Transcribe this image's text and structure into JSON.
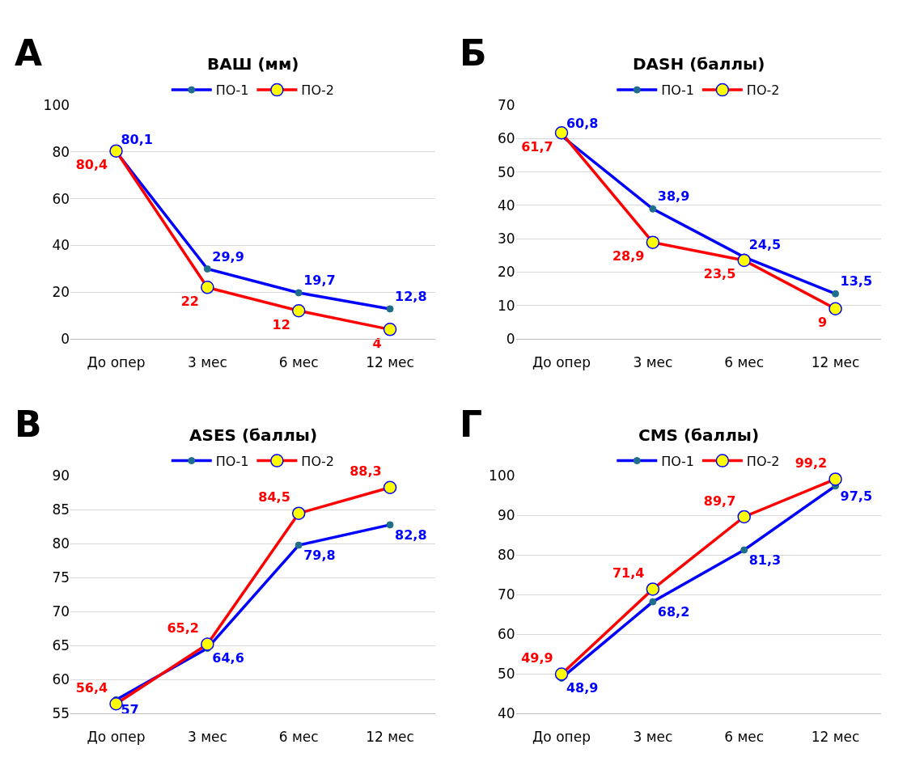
{
  "chart_data": [
    {
      "type": "line",
      "title": "ВАШ (мм)",
      "annotations": [
        "А"
      ],
      "categories": [
        "До опер",
        "3 мес",
        "6 мес",
        "12 мес"
      ],
      "ylim": [
        0,
        100
      ],
      "yticks": [
        0,
        20,
        40,
        60,
        80,
        100
      ],
      "grid": "y",
      "legend": "top",
      "marker": "circle",
      "line_style": "solid",
      "series": [
        {
          "name": "ПО-1",
          "color": "#0000ff",
          "values": [
            80.1,
            29.9,
            19.7,
            12.8
          ],
          "value_labels": [
            "80,1",
            "29,9",
            "19,7",
            "12,8"
          ]
        },
        {
          "name": "ПО-2",
          "color": "#ff0000",
          "values": [
            80.4,
            22,
            12,
            4
          ],
          "value_labels": [
            "80,4",
            "22",
            "12",
            "4"
          ]
        }
      ]
    },
    {
      "type": "line",
      "title": "DASH (баллы)",
      "annotations": [
        "Б"
      ],
      "categories": [
        "До опер",
        "3 мес",
        "6 мес",
        "12 мес"
      ],
      "ylim": [
        0,
        70
      ],
      "yticks": [
        0,
        10,
        20,
        30,
        40,
        50,
        60,
        70
      ],
      "grid": "y",
      "legend": "top",
      "marker": "circle",
      "line_style": "solid",
      "series": [
        {
          "name": "ПО-1",
          "color": "#0000ff",
          "values": [
            60.8,
            38.9,
            24.5,
            13.5
          ],
          "value_labels": [
            "60,8",
            "38,9",
            "24,5",
            "13,5"
          ]
        },
        {
          "name": "ПО-2",
          "color": "#ff0000",
          "values": [
            61.7,
            28.9,
            23.5,
            9
          ],
          "value_labels": [
            "61,7",
            "28,9",
            "23,5",
            "9"
          ]
        }
      ]
    },
    {
      "type": "line",
      "title": "ASES (баллы)",
      "annotations": [
        "В"
      ],
      "categories": [
        "До опер",
        "3 мес",
        "6 мес",
        "12 мес"
      ],
      "ylim": [
        55,
        90
      ],
      "yticks": [
        55,
        60,
        65,
        70,
        75,
        80,
        85,
        90
      ],
      "grid": "y",
      "legend": "top",
      "marker": "circle",
      "line_style": "solid",
      "series": [
        {
          "name": "ПО-1",
          "color": "#0000ff",
          "values": [
            57,
            64.6,
            79.8,
            82.8
          ],
          "value_labels": [
            "57",
            "64,6",
            "79,8",
            "82,8"
          ]
        },
        {
          "name": "ПО-2",
          "color": "#ff0000",
          "values": [
            56.4,
            65.2,
            84.5,
            88.3
          ],
          "value_labels": [
            "56,4",
            "65,2",
            "84,5",
            "88,3"
          ]
        }
      ]
    },
    {
      "type": "line",
      "title": "CMS (баллы)",
      "annotations": [
        "Г"
      ],
      "categories": [
        "До опер",
        "3 мес",
        "6 мес",
        "12 мес"
      ],
      "ylim": [
        40,
        100
      ],
      "yticks": [
        40,
        50,
        60,
        70,
        80,
        90,
        100
      ],
      "grid": "y",
      "legend": "top",
      "marker": "circle",
      "line_style": "solid",
      "series": [
        {
          "name": "ПО-1",
          "color": "#0000ff",
          "values": [
            48.9,
            68.2,
            81.3,
            97.5
          ],
          "value_labels": [
            "48,9",
            "68,2",
            "81,3",
            "97,5"
          ]
        },
        {
          "name": "ПО-2",
          "color": "#ff0000",
          "values": [
            49.9,
            71.4,
            89.7,
            99.2
          ],
          "value_labels": [
            "49,9",
            "71,4",
            "89,7",
            "99,2"
          ]
        }
      ]
    }
  ]
}
